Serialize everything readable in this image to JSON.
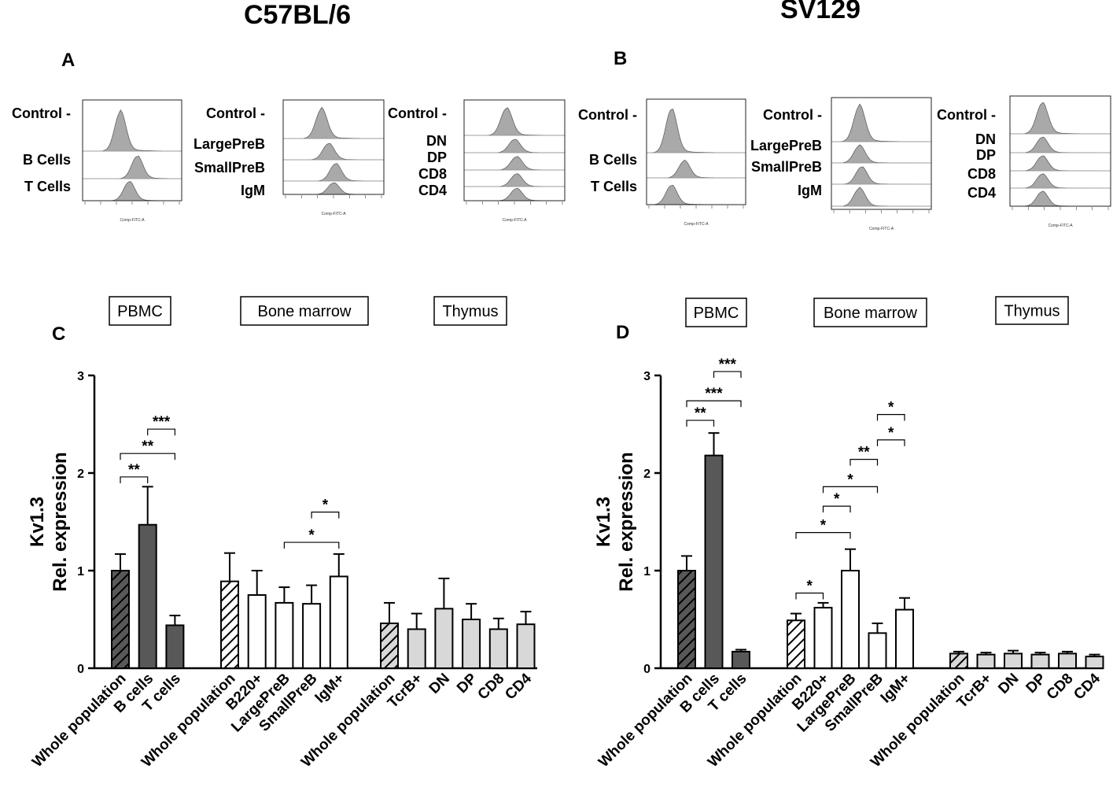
{
  "titles": {
    "left_strain": "C57BL/6",
    "right_strain": "SV129"
  },
  "panels": {
    "A": "A",
    "B": "B",
    "C": "C",
    "D": "D"
  },
  "histograms": {
    "axis_label": "Comp-FITC-A",
    "A1": [
      "Control -",
      "B Cells",
      "T Cells"
    ],
    "A2": [
      "Control -",
      "LargePreB",
      "SmallPreB",
      "IgM"
    ],
    "A3": [
      "Control -",
      "DN",
      "DP",
      "CD8",
      "CD4"
    ],
    "B1": [
      "Control -",
      "B Cells",
      "T Cells"
    ],
    "B2": [
      "Control -",
      "LargePreB",
      "SmallPreB",
      "IgM"
    ],
    "B3": [
      "Control -",
      "DN",
      "DP",
      "CD8",
      "CD4"
    ]
  },
  "colors": {
    "dark": "#585858",
    "light": "#d8d8d8",
    "white": "#ffffff",
    "hist": "#a9a9a9"
  },
  "chart_data": [
    {
      "id": "C",
      "type": "bar",
      "strain": "C57BL/6",
      "ylabel": [
        "Kv1.3",
        "Rel. expression"
      ],
      "ylim": [
        0,
        3
      ],
      "yticks": [
        "0",
        "1",
        "2",
        "3"
      ],
      "groups": [
        {
          "name": "PBMC",
          "fill": "dark",
          "categories": [
            "Whole population",
            "B cells",
            "T cells"
          ],
          "values": [
            1.0,
            1.47,
            0.44
          ],
          "errors": [
            0.17,
            0.39,
            0.1
          ],
          "hatched": [
            true,
            false,
            false
          ]
        },
        {
          "name": "Bone marrow",
          "fill": "white",
          "categories": [
            "Whole population",
            "B220+",
            "LargePreB",
            "SmallPreB",
            "IgM+"
          ],
          "values": [
            0.89,
            0.75,
            0.67,
            0.66,
            0.94
          ],
          "errors": [
            0.29,
            0.25,
            0.16,
            0.19,
            0.23
          ],
          "hatched": [
            true,
            false,
            false,
            false,
            false
          ]
        },
        {
          "name": "Thymus",
          "fill": "light",
          "categories": [
            "Whole population",
            "TcrB+",
            "DN",
            "DP",
            "CD8",
            "CD4"
          ],
          "values": [
            0.46,
            0.4,
            0.61,
            0.5,
            0.4,
            0.45
          ],
          "errors": [
            0.21,
            0.16,
            0.31,
            0.16,
            0.11,
            0.13
          ],
          "hatched": [
            true,
            false,
            false,
            false,
            false,
            false
          ]
        }
      ],
      "significance": [
        {
          "from": "PBMC/Whole population",
          "to": "PBMC/B cells",
          "label": "**",
          "level": 1.96
        },
        {
          "from": "PBMC/Whole population",
          "to": "PBMC/T cells",
          "label": "**",
          "level": 2.2
        },
        {
          "from": "PBMC/B cells",
          "to": "PBMC/T cells",
          "label": "***",
          "level": 2.45
        },
        {
          "from": "Bone marrow/LargePreB",
          "to": "Bone marrow/IgM+",
          "label": "*",
          "level": 1.29
        },
        {
          "from": "Bone marrow/SmallPreB",
          "to": "Bone marrow/IgM+",
          "label": "*",
          "level": 1.6
        }
      ]
    },
    {
      "id": "D",
      "type": "bar",
      "strain": "SV129",
      "ylabel": [
        "Kv1.3",
        "Rel. expression"
      ],
      "ylim": [
        0,
        3
      ],
      "yticks": [
        "0",
        "1",
        "2",
        "3"
      ],
      "groups": [
        {
          "name": "PBMC",
          "fill": "dark",
          "categories": [
            "Whole population",
            "B cells",
            "T cells"
          ],
          "values": [
            1.0,
            2.18,
            0.17
          ],
          "errors": [
            0.15,
            0.23,
            0.02
          ],
          "hatched": [
            true,
            false,
            false
          ]
        },
        {
          "name": "Bone marrow",
          "fill": "white",
          "categories": [
            "Whole population",
            "B220+",
            "LargePreB",
            "SmallPreB",
            "IgM+"
          ],
          "values": [
            0.49,
            0.62,
            1.0,
            0.36,
            0.6
          ],
          "errors": [
            0.07,
            0.05,
            0.22,
            0.1,
            0.12
          ],
          "hatched": [
            true,
            false,
            false,
            false,
            false
          ]
        },
        {
          "name": "Thymus",
          "fill": "light",
          "categories": [
            "Whole population",
            "TcrB+",
            "DN",
            "DP",
            "CD8",
            "CD4"
          ],
          "values": [
            0.15,
            0.14,
            0.15,
            0.14,
            0.15,
            0.12
          ],
          "errors": [
            0.02,
            0.02,
            0.03,
            0.02,
            0.02,
            0.02
          ],
          "hatched": [
            true,
            false,
            false,
            false,
            false,
            false
          ]
        }
      ],
      "significance": [
        {
          "from": "PBMC/Whole population",
          "to": "PBMC/B cells",
          "label": "**",
          "level": 2.54
        },
        {
          "from": "PBMC/Whole population",
          "to": "PBMC/T cells",
          "label": "***",
          "level": 2.74
        },
        {
          "from": "PBMC/B cells",
          "to": "PBMC/T cells",
          "label": "***",
          "level": 3.04
        },
        {
          "from": "Bone marrow/Whole population",
          "to": "Bone marrow/B220+",
          "label": "*",
          "level": 0.77
        },
        {
          "from": "Bone marrow/Whole population",
          "to": "Bone marrow/LargePreB",
          "label": "*",
          "level": 1.39
        },
        {
          "from": "Bone marrow/B220+",
          "to": "Bone marrow/LargePreB",
          "label": "*",
          "level": 1.66
        },
        {
          "from": "Bone marrow/B220+",
          "to": "Bone marrow/SmallPreB",
          "label": "*",
          "level": 1.86
        },
        {
          "from": "Bone marrow/LargePreB",
          "to": "Bone marrow/SmallPreB",
          "label": "**",
          "level": 2.14
        },
        {
          "from": "Bone marrow/SmallPreB",
          "to": "Bone marrow/IgM+",
          "label": "*",
          "level": 2.34
        },
        {
          "from": "Bone marrow/SmallPreB",
          "to": "Bone marrow/IgM+",
          "label": "*",
          "level": 2.6
        }
      ]
    }
  ]
}
